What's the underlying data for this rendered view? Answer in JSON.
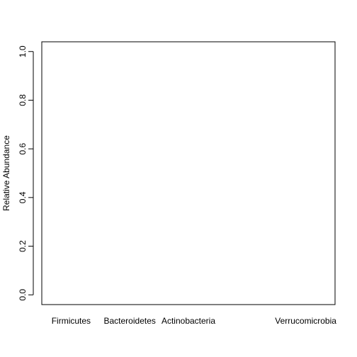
{
  "chart_data": {
    "type": "bar",
    "title": "",
    "xlabel": "",
    "ylabel": "Relative Abundance",
    "categories": [
      "Firmicutes",
      "Bacteroidetes",
      "Actinobacteria",
      "Verrucomicrobia"
    ],
    "category_positions": [
      1,
      2,
      3,
      5
    ],
    "x_range": [
      0.5,
      5.5
    ],
    "ylim": [
      0,
      1
    ],
    "y_ticks": [
      0.0,
      0.2,
      0.4,
      0.6,
      0.8,
      1.0
    ],
    "y_tick_labels": [
      "0.0",
      "0.2",
      "0.4",
      "0.6",
      "0.8",
      "1.0"
    ],
    "values": [
      null,
      null,
      null,
      null
    ],
    "grid": false,
    "legend": "none",
    "colors": {
      "axis": "#000000",
      "background": "#ffffff"
    }
  }
}
